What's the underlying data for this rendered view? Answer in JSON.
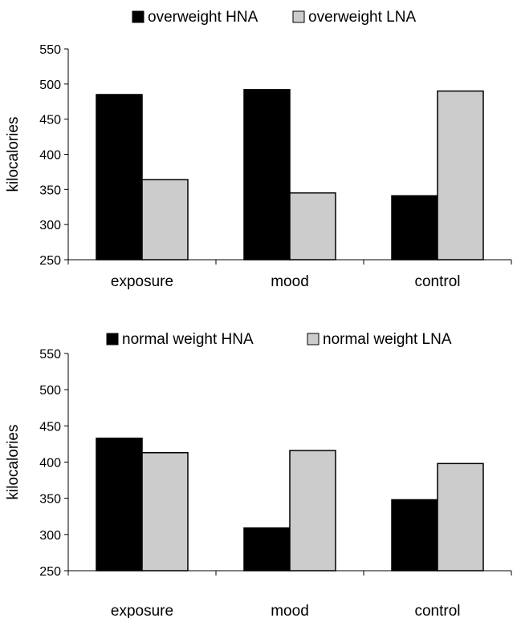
{
  "chart_data": [
    {
      "type": "bar",
      "title": "",
      "xlabel": "",
      "ylabel": "kilocalories",
      "ylim": [
        250,
        550
      ],
      "yticks": [
        250,
        300,
        350,
        400,
        450,
        500,
        550
      ],
      "grid": false,
      "legend_position": "top",
      "categories": [
        "exposure",
        "mood",
        "control"
      ],
      "series": [
        {
          "name": "overweight HNA",
          "color": "#000000",
          "values": [
            485,
            492,
            341
          ]
        },
        {
          "name": "overweight LNA",
          "color": "#cccccc",
          "values": [
            364,
            345,
            490
          ]
        }
      ]
    },
    {
      "type": "bar",
      "title": "",
      "xlabel": "",
      "ylabel": "kilocalories",
      "ylim": [
        250,
        550
      ],
      "yticks": [
        250,
        300,
        350,
        400,
        450,
        500,
        550
      ],
      "grid": false,
      "legend_position": "top",
      "categories": [
        "exposure",
        "mood",
        "control"
      ],
      "series": [
        {
          "name": "normal weight HNA",
          "color": "#000000",
          "values": [
            433,
            309,
            348
          ]
        },
        {
          "name": "normal weight LNA",
          "color": "#cccccc",
          "values": [
            413,
            416,
            398
          ]
        }
      ]
    }
  ]
}
